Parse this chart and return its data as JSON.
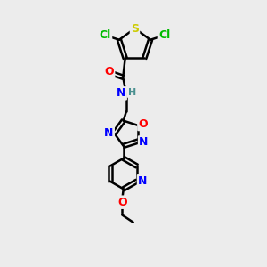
{
  "bg_color": "#ececec",
  "bond_color": "#000000",
  "bond_width": 1.8,
  "atom_colors": {
    "C": "#000000",
    "H": "#4a9090",
    "N": "#0000ff",
    "O": "#ff0000",
    "S": "#cccc00",
    "Cl": "#00bb00"
  },
  "font_size": 9,
  "fig_size": [
    3.0,
    3.0
  ],
  "dpi": 100
}
